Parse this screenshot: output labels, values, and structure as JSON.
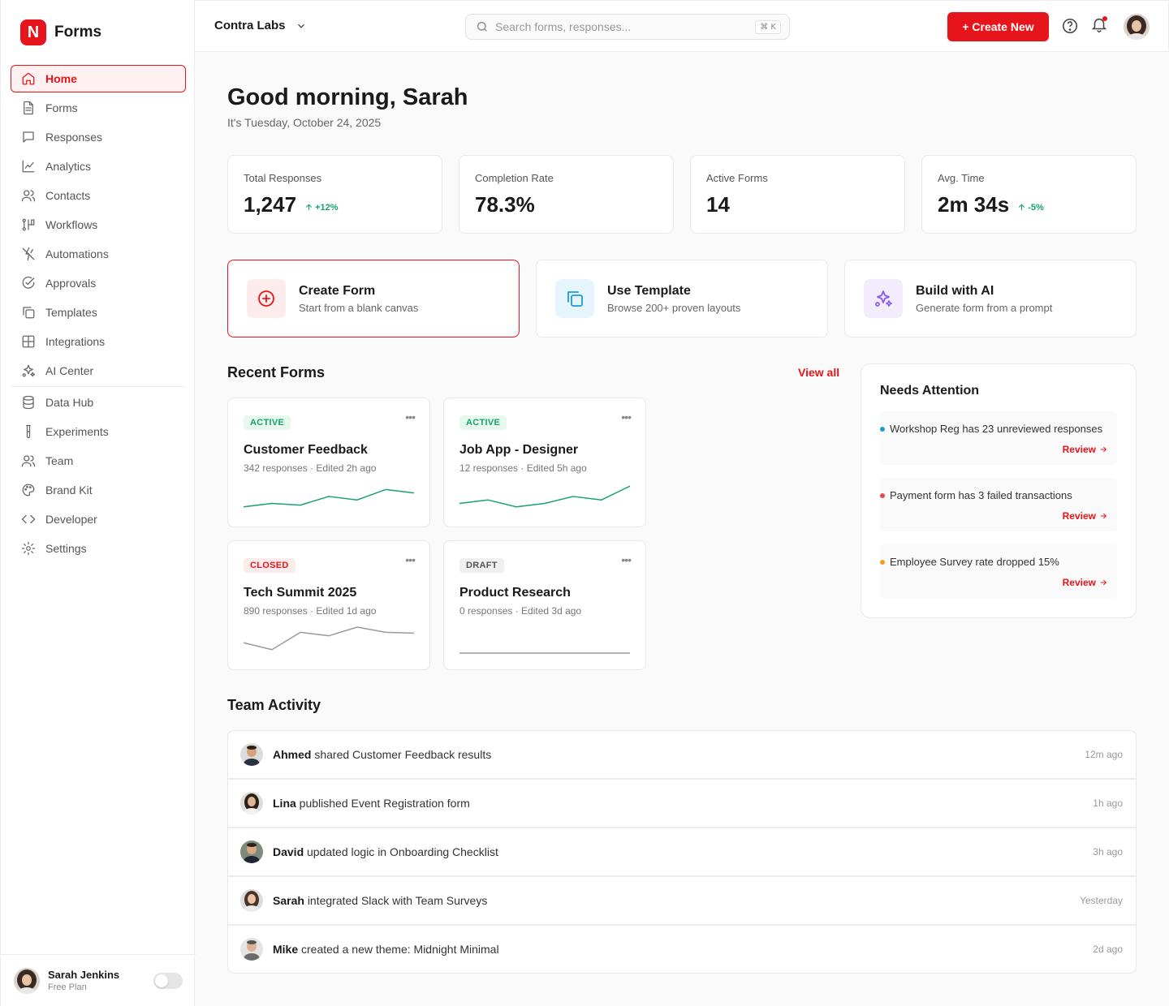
{
  "brand": {
    "logo_letter": "N",
    "name": "Forms"
  },
  "nav": {
    "items": [
      {
        "label": "Home",
        "icon": "home-icon",
        "active": true
      },
      {
        "label": "Forms",
        "icon": "document-icon"
      },
      {
        "label": "Responses",
        "icon": "message-icon"
      },
      {
        "label": "Analytics",
        "icon": "chart-line-icon"
      },
      {
        "label": "Contacts",
        "icon": "users-icon"
      },
      {
        "label": "Workflows",
        "icon": "workflow-icon"
      },
      {
        "label": "Automations",
        "icon": "automation-icon"
      },
      {
        "label": "Approvals",
        "icon": "check-circle-icon"
      },
      {
        "label": "Templates",
        "icon": "copy-icon"
      },
      {
        "label": "Integrations",
        "icon": "grid-icon"
      },
      {
        "label": "AI Center",
        "icon": "sparkles-icon"
      }
    ],
    "secondary": [
      {
        "label": "Data Hub",
        "icon": "database-icon"
      },
      {
        "label": "Experiments",
        "icon": "flask-icon"
      },
      {
        "label": "Team",
        "icon": "users-icon"
      },
      {
        "label": "Brand Kit",
        "icon": "palette-icon"
      },
      {
        "label": "Developer",
        "icon": "code-icon"
      },
      {
        "label": "Settings",
        "icon": "gear-icon"
      }
    ]
  },
  "user": {
    "name": "Sarah Jenkins",
    "plan": "Free Plan"
  },
  "topbar": {
    "workspace": "Contra Labs",
    "search_placeholder": "Search forms, responses...",
    "shortcut": "⌘ K",
    "create_label": "+ Create New"
  },
  "header": {
    "greeting": "Good morning, Sarah",
    "date": "It's Tuesday, October 24, 2025"
  },
  "stats": [
    {
      "label": "Total Responses",
      "value": "1,247",
      "delta": "+12%"
    },
    {
      "label": "Completion Rate",
      "value": "78.3%",
      "delta": ""
    },
    {
      "label": "Active Forms",
      "value": "14",
      "delta": ""
    },
    {
      "label": "Avg. Time",
      "value": "2m 34s",
      "delta": "-5%"
    }
  ],
  "actions": [
    {
      "title": "Create Form",
      "subtitle": "Start from a blank canvas",
      "icon": "plus-circle-icon"
    },
    {
      "title": "Use Template",
      "subtitle": "Browse 200+ proven layouts",
      "icon": "copy-icon"
    },
    {
      "title": "Build with AI",
      "subtitle": "Generate form from a prompt",
      "icon": "sparkles-icon"
    }
  ],
  "recent": {
    "title": "Recent Forms",
    "view_all": "View all",
    "forms": [
      {
        "status": "ACTIVE",
        "title": "Customer Feedback",
        "meta": "342 responses · Edited 2h ago",
        "trend": [
          2,
          4,
          3,
          8,
          6,
          12,
          10
        ],
        "color": "#17a36b"
      },
      {
        "status": "ACTIVE",
        "title": "Job App - Designer",
        "meta": "12 responses · Edited 5h ago",
        "trend": [
          4,
          6,
          2,
          4,
          8,
          6,
          14
        ],
        "color": "#17a36b"
      },
      {
        "status": "CLOSED",
        "title": "Tech Summit 2025",
        "meta": "890 responses · Edited 1d ago",
        "trend": [
          6,
          2,
          12,
          10,
          15,
          12,
          11.5
        ],
        "color": "#9a9a9a"
      },
      {
        "status": "DRAFT",
        "title": "Product Research",
        "meta": "0 responses · Edited 3d ago",
        "trend": [
          0,
          0,
          0,
          0,
          0,
          0,
          0
        ],
        "color": "#9a9a9a"
      }
    ]
  },
  "attention": {
    "title": "Needs Attention",
    "review_label": "Review",
    "items": [
      {
        "text": "Workshop Reg has 23 unreviewed responses",
        "color": "#1f9bd9"
      },
      {
        "text": "Payment form has 3 failed transactions",
        "color": "#e5484d"
      },
      {
        "text": "Employee Survey rate dropped 15%",
        "color": "#f0a020"
      }
    ]
  },
  "activity": {
    "title": "Team Activity",
    "items": [
      {
        "user": "Ahmed",
        "action": "shared Customer Feedback results",
        "time": "12m ago"
      },
      {
        "user": "Lina",
        "action": "published Event Registration form",
        "time": "1h ago"
      },
      {
        "user": "David",
        "action": "updated logic in Onboarding Checklist",
        "time": "3h ago"
      },
      {
        "user": "Sarah",
        "action": "integrated Slack with Team Surveys",
        "time": "Yesterday"
      },
      {
        "user": "Mike",
        "action": "created a new theme: Midnight Minimal",
        "time": "2d ago"
      }
    ]
  }
}
